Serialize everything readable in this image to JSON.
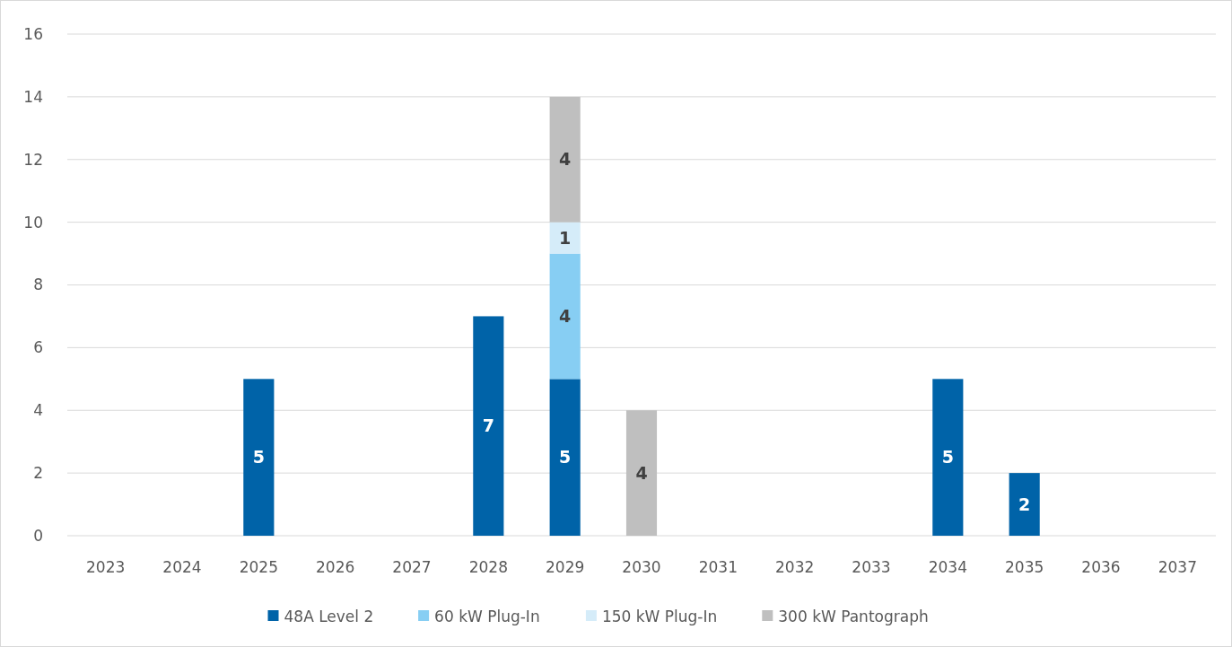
{
  "chart_data": {
    "type": "bar",
    "stacked": true,
    "categories": [
      "2023",
      "2024",
      "2025",
      "2026",
      "2027",
      "2028",
      "2029",
      "2030",
      "2031",
      "2032",
      "2033",
      "2034",
      "2035",
      "2036",
      "2037"
    ],
    "series": [
      {
        "name": "48A Level 2",
        "color": "#0063a8",
        "values": [
          null,
          null,
          5,
          null,
          null,
          7,
          5,
          null,
          null,
          null,
          null,
          5,
          2,
          null,
          null
        ]
      },
      {
        "name": "60 kW Plug-In",
        "color": "#87cef3",
        "values": [
          null,
          null,
          null,
          null,
          null,
          null,
          4,
          null,
          null,
          null,
          null,
          null,
          null,
          null,
          null
        ]
      },
      {
        "name": "150 kW Plug-In",
        "color": "#d5ecf9",
        "values": [
          null,
          null,
          null,
          null,
          null,
          null,
          1,
          null,
          null,
          null,
          null,
          null,
          null,
          null,
          null
        ]
      },
      {
        "name": "300 kW Pantograph",
        "color": "#bfbfbf",
        "values": [
          null,
          null,
          null,
          null,
          null,
          null,
          4,
          4,
          null,
          null,
          null,
          null,
          null,
          null,
          null
        ]
      }
    ],
    "ylim": [
      0,
      16
    ],
    "yticks": [
      0,
      2,
      4,
      6,
      8,
      10,
      12,
      14,
      16
    ],
    "grid": "y",
    "legend": "bottom",
    "data_labels": true
  }
}
